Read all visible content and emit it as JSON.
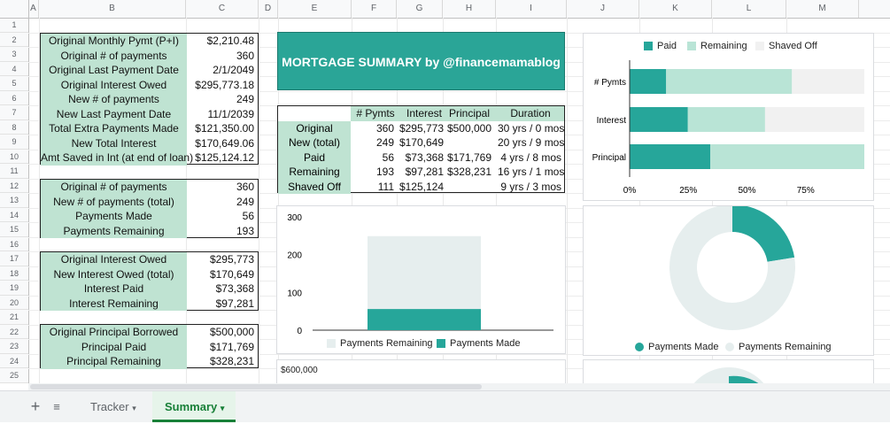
{
  "columns": [
    "A",
    "B",
    "C",
    "D",
    "E",
    "F",
    "G",
    "H",
    "I",
    "J",
    "K",
    "L",
    "M"
  ],
  "rows": [
    "1",
    "2",
    "3",
    "4",
    "5",
    "6",
    "7",
    "8",
    "9",
    "10",
    "11",
    "12",
    "13",
    "14",
    "15",
    "16",
    "17",
    "18",
    "19",
    "20",
    "21",
    "22",
    "23",
    "24",
    "25"
  ],
  "box1": [
    {
      "label": "Original Monthly Pymt (P+I)",
      "value": "$2,210.48"
    },
    {
      "label": "Original # of payments",
      "value": "360"
    },
    {
      "label": "Original Last Payment Date",
      "value": "2/1/2049"
    },
    {
      "label": "Original Interest Owed",
      "value": "$295,773.18"
    },
    {
      "label": "New # of payments",
      "value": "249"
    },
    {
      "label": "New Last Payment Date",
      "value": "11/1/2039"
    },
    {
      "label": "Total Extra Payments Made",
      "value": "$121,350.00"
    },
    {
      "label": "New Total Interest",
      "value": "$170,649.06"
    },
    {
      "label": "Amt Saved in Int (at end of loan)",
      "value": "$125,124.12"
    }
  ],
  "box2": [
    {
      "label": "Original # of payments",
      "value": "360"
    },
    {
      "label": "New # of payments (total)",
      "value": "249"
    },
    {
      "label": "Payments Made",
      "value": "56"
    },
    {
      "label": "Payments Remaining",
      "value": "193"
    }
  ],
  "box3": [
    {
      "label": "Original Interest Owed",
      "value": "$295,773"
    },
    {
      "label": "New Interest Owed (total)",
      "value": "$170,649"
    },
    {
      "label": "Interest Paid",
      "value": "$73,368"
    },
    {
      "label": "Interest Remaining",
      "value": "$97,281"
    }
  ],
  "box4": [
    {
      "label": "Original Principal Borrowed",
      "value": "$500,000"
    },
    {
      "label": "Principal Paid",
      "value": "$171,769"
    },
    {
      "label": "Principal Remaining",
      "value": "$328,231"
    }
  ],
  "banner": "MORTGAGE SUMMARY by @financemamablog",
  "summary": {
    "headers": [
      "# Pymts",
      "Interest",
      "Principal",
      "Duration"
    ],
    "rows": [
      {
        "label": "Original",
        "cells": [
          "360",
          "$295,773",
          "$500,000",
          "30 yrs / 0 mos"
        ]
      },
      {
        "label": "New (total)",
        "cells": [
          "249",
          "$170,649",
          "",
          "20 yrs / 9 mos"
        ]
      },
      {
        "label": "Paid",
        "cells": [
          "56",
          "$73,368",
          "$171,769",
          "4 yrs / 8 mos"
        ]
      },
      {
        "label": "Remaining",
        "cells": [
          "193",
          "$97,281",
          "$328,231",
          "16 yrs / 1 mos"
        ]
      },
      {
        "label": "Shaved Off",
        "cells": [
          "111",
          "$125,124",
          "",
          "9 yrs / 3 mos"
        ]
      }
    ]
  },
  "colors": {
    "paid": "#26a69a",
    "remaining": "#b9e4d6",
    "shaved": "#f1f1f1",
    "donut_rest": "#e6eeee",
    "label_bg": "#bfe3d2",
    "banner": "#2aa597"
  },
  "chart_data": [
    {
      "type": "bar",
      "orientation": "horizontal",
      "stacked": "percent",
      "categories": [
        "# Pymts",
        "Interest",
        "Principal"
      ],
      "series": [
        {
          "name": "Paid",
          "values": [
            56,
            73368,
            171769
          ]
        },
        {
          "name": "Remaining",
          "values": [
            193,
            97281,
            328231
          ]
        },
        {
          "name": "Shaved Off",
          "values": [
            111,
            125124,
            0
          ]
        }
      ],
      "xticks": [
        "0%",
        "25%",
        "50%",
        "75%"
      ],
      "legend": "top"
    },
    {
      "type": "bar",
      "stacked": "normal",
      "categories": [
        ""
      ],
      "series": [
        {
          "name": "Payments Remaining",
          "values": [
            193
          ]
        },
        {
          "name": "Payments Made",
          "values": [
            56
          ]
        }
      ],
      "yticks": [
        "0",
        "100",
        "200",
        "300"
      ],
      "ylim": [
        0,
        300
      ],
      "legend": "bottom"
    },
    {
      "type": "pie",
      "donut": true,
      "slices": [
        {
          "name": "Payments Made",
          "value": 56
        },
        {
          "name": "Payments Remaining",
          "value": 193
        }
      ],
      "legend": "bottom"
    }
  ],
  "partial_chart_label": "$600,000",
  "tabs": {
    "tracker": "Tracker",
    "summary": "Summary",
    "add": "+",
    "menu": "≡",
    "caret": "▾"
  }
}
